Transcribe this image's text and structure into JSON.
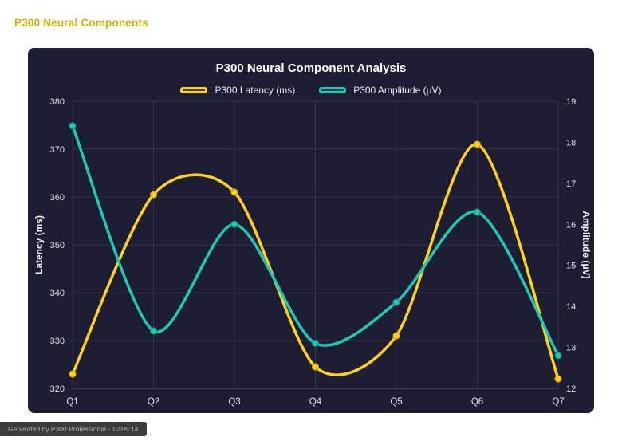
{
  "page": {
    "header": "P300 Neural Components",
    "footer": "Generated by P300 Professional - 10:05:14",
    "colors": {
      "page_bg": "#ffffff",
      "panel_bg": "#1d1d33",
      "header_text": "#ddb100",
      "title_text": "#ffffff",
      "legend_text": "#eceaf2",
      "tick_text": "#e2e3ea",
      "axis_title_text": "#f3f4f8",
      "grid": "rgba(255,255,255,0.10)",
      "axis_line": "rgba(255,255,255,0.28)",
      "footer_bg": "#3c3c3c",
      "footer_text": "#b3b3b3"
    }
  },
  "chart_data": {
    "type": "line",
    "title": "P300 Neural Component Analysis",
    "categories": [
      "Q1",
      "Q2",
      "Q3",
      "Q4",
      "Q5",
      "Q6",
      "Q7"
    ],
    "series": [
      {
        "key": "latency",
        "name": "P300 Latency (ms)",
        "axis": "left",
        "color": "#ffd21e",
        "point_border": "#cfa000",
        "values": [
          323,
          360.5,
          361,
          324.5,
          331,
          371,
          322
        ]
      },
      {
        "key": "amplitude",
        "name": "P300 Amplitude (μV)",
        "axis": "right",
        "color": "#1ec9b5",
        "point_border": "#128d80",
        "values": [
          18.4,
          13.4,
          16.0,
          13.1,
          14.1,
          16.3,
          12.8
        ]
      }
    ],
    "axes": {
      "left": {
        "title": "Latency (ms)",
        "min": 320,
        "max": 380,
        "step": 10
      },
      "right": {
        "title": "Amplitude (μV)",
        "min": 12,
        "max": 19,
        "step": 1
      }
    },
    "legend_position": "top",
    "grid": true
  }
}
